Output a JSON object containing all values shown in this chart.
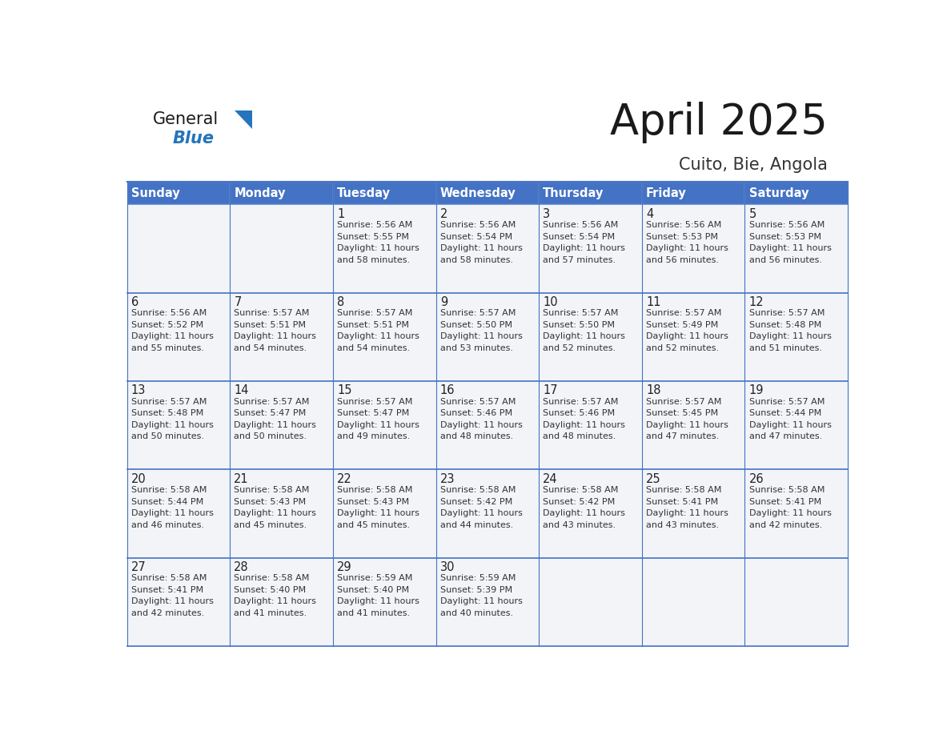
{
  "title": "April 2025",
  "subtitle": "Cuito, Bie, Angola",
  "header_bg": "#4472C4",
  "header_text": "#FFFFFF",
  "cell_bg": "#F2F4F8",
  "cell_text": "#333333",
  "border_color": "#4472C4",
  "days_of_week": [
    "Sunday",
    "Monday",
    "Tuesday",
    "Wednesday",
    "Thursday",
    "Friday",
    "Saturday"
  ],
  "calendar": [
    [
      {
        "day": "",
        "sunrise": "",
        "sunset": "",
        "daylight_h": "",
        "daylight_m": ""
      },
      {
        "day": "",
        "sunrise": "",
        "sunset": "",
        "daylight_h": "",
        "daylight_m": ""
      },
      {
        "day": "1",
        "sunrise": "5:56 AM",
        "sunset": "5:55 PM",
        "daylight_h": "11",
        "daylight_m": "58"
      },
      {
        "day": "2",
        "sunrise": "5:56 AM",
        "sunset": "5:54 PM",
        "daylight_h": "11",
        "daylight_m": "58"
      },
      {
        "day": "3",
        "sunrise": "5:56 AM",
        "sunset": "5:54 PM",
        "daylight_h": "11",
        "daylight_m": "57"
      },
      {
        "day": "4",
        "sunrise": "5:56 AM",
        "sunset": "5:53 PM",
        "daylight_h": "11",
        "daylight_m": "56"
      },
      {
        "day": "5",
        "sunrise": "5:56 AM",
        "sunset": "5:53 PM",
        "daylight_h": "11",
        "daylight_m": "56"
      }
    ],
    [
      {
        "day": "6",
        "sunrise": "5:56 AM",
        "sunset": "5:52 PM",
        "daylight_h": "11",
        "daylight_m": "55"
      },
      {
        "day": "7",
        "sunrise": "5:57 AM",
        "sunset": "5:51 PM",
        "daylight_h": "11",
        "daylight_m": "54"
      },
      {
        "day": "8",
        "sunrise": "5:57 AM",
        "sunset": "5:51 PM",
        "daylight_h": "11",
        "daylight_m": "54"
      },
      {
        "day": "9",
        "sunrise": "5:57 AM",
        "sunset": "5:50 PM",
        "daylight_h": "11",
        "daylight_m": "53"
      },
      {
        "day": "10",
        "sunrise": "5:57 AM",
        "sunset": "5:50 PM",
        "daylight_h": "11",
        "daylight_m": "52"
      },
      {
        "day": "11",
        "sunrise": "5:57 AM",
        "sunset": "5:49 PM",
        "daylight_h": "11",
        "daylight_m": "52"
      },
      {
        "day": "12",
        "sunrise": "5:57 AM",
        "sunset": "5:48 PM",
        "daylight_h": "11",
        "daylight_m": "51"
      }
    ],
    [
      {
        "day": "13",
        "sunrise": "5:57 AM",
        "sunset": "5:48 PM",
        "daylight_h": "11",
        "daylight_m": "50"
      },
      {
        "day": "14",
        "sunrise": "5:57 AM",
        "sunset": "5:47 PM",
        "daylight_h": "11",
        "daylight_m": "50"
      },
      {
        "day": "15",
        "sunrise": "5:57 AM",
        "sunset": "5:47 PM",
        "daylight_h": "11",
        "daylight_m": "49"
      },
      {
        "day": "16",
        "sunrise": "5:57 AM",
        "sunset": "5:46 PM",
        "daylight_h": "11",
        "daylight_m": "48"
      },
      {
        "day": "17",
        "sunrise": "5:57 AM",
        "sunset": "5:46 PM",
        "daylight_h": "11",
        "daylight_m": "48"
      },
      {
        "day": "18",
        "sunrise": "5:57 AM",
        "sunset": "5:45 PM",
        "daylight_h": "11",
        "daylight_m": "47"
      },
      {
        "day": "19",
        "sunrise": "5:57 AM",
        "sunset": "5:44 PM",
        "daylight_h": "11",
        "daylight_m": "47"
      }
    ],
    [
      {
        "day": "20",
        "sunrise": "5:58 AM",
        "sunset": "5:44 PM",
        "daylight_h": "11",
        "daylight_m": "46"
      },
      {
        "day": "21",
        "sunrise": "5:58 AM",
        "sunset": "5:43 PM",
        "daylight_h": "11",
        "daylight_m": "45"
      },
      {
        "day": "22",
        "sunrise": "5:58 AM",
        "sunset": "5:43 PM",
        "daylight_h": "11",
        "daylight_m": "45"
      },
      {
        "day": "23",
        "sunrise": "5:58 AM",
        "sunset": "5:42 PM",
        "daylight_h": "11",
        "daylight_m": "44"
      },
      {
        "day": "24",
        "sunrise": "5:58 AM",
        "sunset": "5:42 PM",
        "daylight_h": "11",
        "daylight_m": "43"
      },
      {
        "day": "25",
        "sunrise": "5:58 AM",
        "sunset": "5:41 PM",
        "daylight_h": "11",
        "daylight_m": "43"
      },
      {
        "day": "26",
        "sunrise": "5:58 AM",
        "sunset": "5:41 PM",
        "daylight_h": "11",
        "daylight_m": "42"
      }
    ],
    [
      {
        "day": "27",
        "sunrise": "5:58 AM",
        "sunset": "5:41 PM",
        "daylight_h": "11",
        "daylight_m": "42"
      },
      {
        "day": "28",
        "sunrise": "5:58 AM",
        "sunset": "5:40 PM",
        "daylight_h": "11",
        "daylight_m": "41"
      },
      {
        "day": "29",
        "sunrise": "5:59 AM",
        "sunset": "5:40 PM",
        "daylight_h": "11",
        "daylight_m": "41"
      },
      {
        "day": "30",
        "sunrise": "5:59 AM",
        "sunset": "5:39 PM",
        "daylight_h": "11",
        "daylight_m": "40"
      },
      {
        "day": "",
        "sunrise": "",
        "sunset": "",
        "daylight_h": "",
        "daylight_m": ""
      },
      {
        "day": "",
        "sunrise": "",
        "sunset": "",
        "daylight_h": "",
        "daylight_m": ""
      },
      {
        "day": "",
        "sunrise": "",
        "sunset": "",
        "daylight_h": "",
        "daylight_m": ""
      }
    ]
  ],
  "logo_general_color": "#1a1a1a",
  "logo_blue_color": "#2475BB",
  "logo_triangle_color": "#2475BB",
  "title_color": "#1a1a1a",
  "subtitle_color": "#333333"
}
